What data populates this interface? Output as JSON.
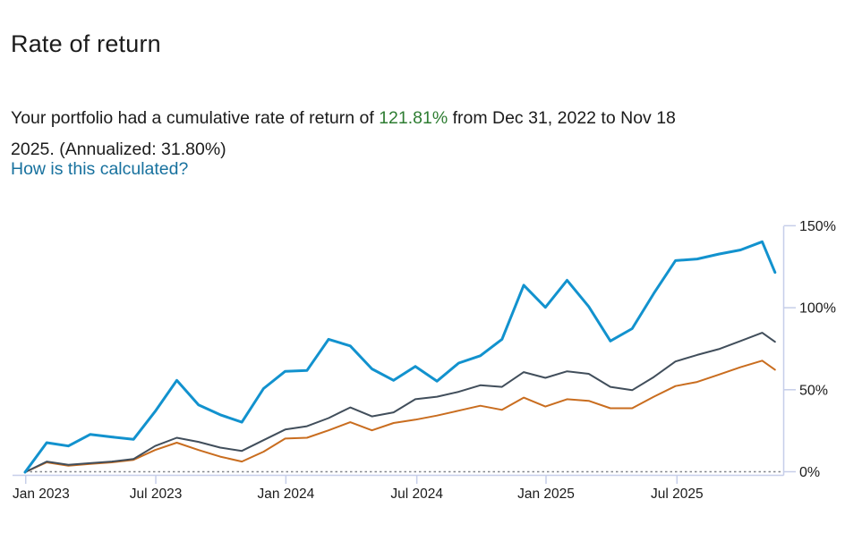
{
  "page": {
    "title": "Rate of return"
  },
  "summary": {
    "line1_pre": "Your portfolio had a cumulative rate of return of ",
    "highlight_value": "121.81%",
    "line1_post": " from Dec 31, 2022 to Nov 18",
    "line2": "2025. (Annualized: 31.80%)",
    "highlight_color": "#2e7d32"
  },
  "link": {
    "label": "How is this calculated?",
    "color": "#17719e"
  },
  "chart_data": {
    "type": "line",
    "title": "",
    "xlabel": "",
    "ylabel": "",
    "ylim": [
      0,
      150
    ],
    "y_tick_labels": [
      "0%",
      "50%",
      "100%",
      "150%"
    ],
    "y_tick_values": [
      0,
      50,
      100,
      150
    ],
    "x_tick_labels": [
      "Jan 2023",
      "Jul 2023",
      "Jan 2024",
      "Jul 2024",
      "Jan 2025",
      "Jul 2025"
    ],
    "x_tick_month_offsets": [
      0.03,
      6.03,
      12.03,
      18.07,
      24.03,
      30.07
    ],
    "grid": "dotted zero baseline only",
    "legend": "none",
    "x": [
      "Dec 2022",
      "Jan 2023",
      "Feb 2023",
      "Mar 2023",
      "Apr 2023",
      "May 2023",
      "Jun 2023",
      "Jul 2023",
      "Aug 2023",
      "Sep 2023",
      "Oct 2023",
      "Nov 2023",
      "Dec 2023",
      "Jan 2024",
      "Feb 2024",
      "Mar 2024",
      "Apr 2024",
      "May 2024",
      "Jun 2024",
      "Jul 2024",
      "Aug 2024",
      "Sep 2024",
      "Oct 2024",
      "Nov 2024",
      "Dec 2024",
      "Jan 2025",
      "Feb 2025",
      "Mar 2025",
      "Apr 2025",
      "May 2025",
      "Jun 2025",
      "Jul 2025",
      "Aug 2025",
      "Sep 2025",
      "Oct 2025",
      "Nov 18, 2025"
    ],
    "series": [
      {
        "name": "portfolio-blue-line",
        "color": "#1292ce",
        "stroke_width": 3,
        "values": [
          0,
          18,
          16,
          23,
          21.5,
          20,
          37,
          56,
          41,
          35,
          30.5,
          51,
          61.5,
          62,
          81,
          77,
          63,
          56,
          64.5,
          55.5,
          66.5,
          71,
          81,
          114,
          100.5,
          117,
          101,
          80,
          87.5,
          109,
          129,
          130,
          133,
          135.5,
          140.5,
          121.81
        ]
      },
      {
        "name": "gray-benchmark-line",
        "color": "#414e5b",
        "stroke_width": 2,
        "values": [
          0,
          6.5,
          4.5,
          5.5,
          6.5,
          8,
          16,
          21,
          18.5,
          15,
          13,
          19.5,
          26,
          28,
          33,
          39.5,
          34,
          36.5,
          44.5,
          46,
          49,
          53,
          52,
          61,
          57.5,
          61.5,
          60,
          52,
          50,
          58,
          67.5,
          71.5,
          75,
          80,
          85,
          79.5
        ]
      },
      {
        "name": "orange-benchmark-line",
        "color": "#c96d1f",
        "stroke_width": 2,
        "values": [
          0,
          6,
          4,
          5,
          6,
          7.5,
          13.5,
          18,
          13.5,
          9.5,
          6.5,
          12.5,
          20.5,
          21,
          25.5,
          30.5,
          25.5,
          30,
          32,
          34.5,
          37.5,
          40.5,
          38,
          45.5,
          40,
          44.5,
          43.5,
          39,
          39,
          46,
          52.5,
          55,
          59.5,
          64,
          68,
          62.5
        ]
      }
    ],
    "colors": {
      "axis_line": "#c6cee9",
      "zero_dotted_line": "#83878e",
      "tick_label": "#1b1b1b"
    }
  }
}
